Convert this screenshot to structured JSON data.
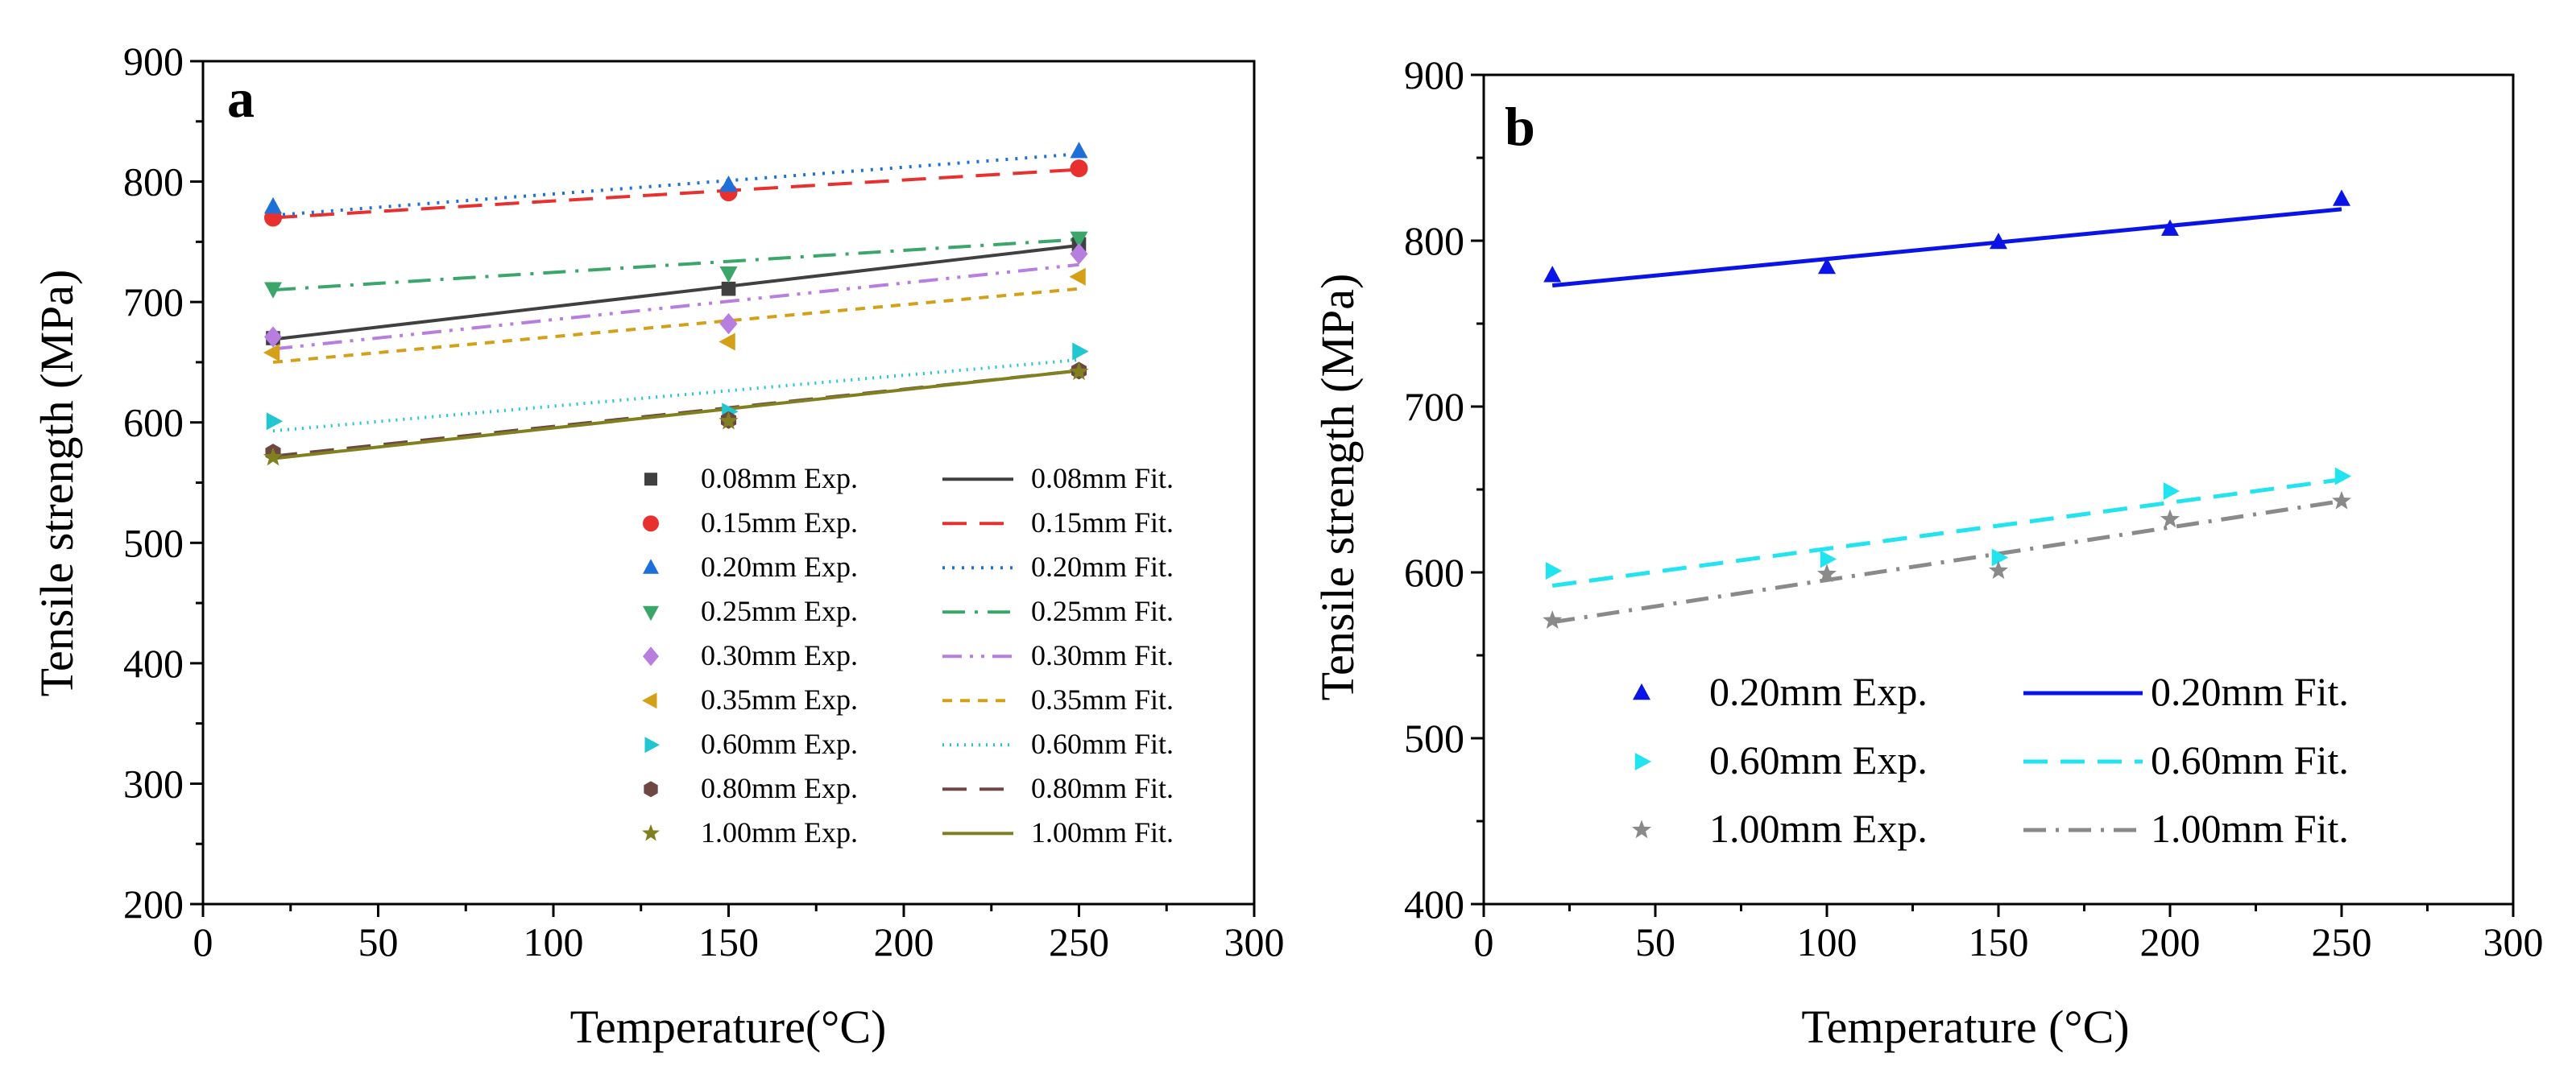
{
  "chart_data": [
    {
      "type": "scatter",
      "panel": "a",
      "xlabel": "Temperature(°C)",
      "ylabel": "Tensile strength (MPa)",
      "xlim": [
        0,
        300
      ],
      "ylim": [
        200,
        900
      ],
      "xticks": [
        0,
        50,
        100,
        150,
        200,
        250,
        300
      ],
      "yticks": [
        200,
        300,
        400,
        500,
        600,
        700,
        800,
        900
      ],
      "legend_position": "bottom-right",
      "series": [
        {
          "name": "0.08mm",
          "exp_label": "0.08mm Exp.",
          "fit_label": "0.08mm Fit.",
          "color": "#404040",
          "marker": "square",
          "dash": "solid",
          "x": [
            20,
            150,
            250
          ],
          "y": [
            670,
            711,
            748
          ],
          "fit": [
            669,
            747
          ]
        },
        {
          "name": "0.15mm",
          "exp_label": "0.15mm Exp.",
          "fit_label": "0.15mm Fit.",
          "color": "#e8312f",
          "marker": "circle",
          "dash": "dash",
          "x": [
            20,
            150,
            250
          ],
          "y": [
            770,
            791,
            811
          ],
          "fit": [
            770,
            810
          ]
        },
        {
          "name": "0.20mm",
          "exp_label": "0.20mm Exp.",
          "fit_label": "0.20mm Fit.",
          "color": "#1f6fd8",
          "marker": "triangle-up",
          "dash": "dot",
          "x": [
            20,
            150,
            250
          ],
          "y": [
            779,
            797,
            825
          ],
          "fit": [
            772,
            823
          ]
        },
        {
          "name": "0.25mm",
          "exp_label": "0.25mm Exp.",
          "fit_label": "0.25mm Fit.",
          "color": "#3aa66a",
          "marker": "triangle-down",
          "dash": "dashdot",
          "x": [
            20,
            150,
            250
          ],
          "y": [
            711,
            724,
            753
          ],
          "fit": [
            710,
            752
          ]
        },
        {
          "name": "0.30mm",
          "exp_label": "0.30mm Exp.",
          "fit_label": "0.30mm Fit.",
          "color": "#b77ee0",
          "marker": "diamond",
          "dash": "dashdotdot",
          "x": [
            20,
            150,
            250
          ],
          "y": [
            671,
            682,
            740
          ],
          "fit": [
            661,
            731
          ]
        },
        {
          "name": "0.35mm",
          "exp_label": "0.35mm Exp.",
          "fit_label": "0.35mm Fit.",
          "color": "#d4a017",
          "marker": "triangle-left",
          "dash": "shortdash",
          "x": [
            20,
            150,
            250
          ],
          "y": [
            658,
            667,
            721
          ],
          "fit": [
            650,
            711
          ]
        },
        {
          "name": "0.60mm",
          "exp_label": "0.60mm Exp.",
          "fit_label": "0.60mm Fit.",
          "color": "#20c6d0",
          "marker": "triangle-right",
          "dash": "shortdot",
          "x": [
            20,
            150,
            250
          ],
          "y": [
            601,
            609,
            659
          ],
          "fit": [
            593,
            652
          ]
        },
        {
          "name": "0.80mm",
          "exp_label": "0.80mm Exp.",
          "fit_label": "0.80mm Fit.",
          "color": "#6e4642",
          "marker": "hexagon",
          "dash": "dash",
          "x": [
            20,
            150,
            250
          ],
          "y": [
            575,
            602,
            643
          ],
          "fit": [
            572,
            643
          ]
        },
        {
          "name": "1.00mm",
          "exp_label": "1.00mm Exp.",
          "fit_label": "1.00mm Fit.",
          "color": "#808020",
          "marker": "star",
          "dash": "solid",
          "x": [
            20,
            150,
            250
          ],
          "y": [
            571,
            601,
            642
          ],
          "fit": [
            570,
            643
          ]
        }
      ]
    },
    {
      "type": "scatter",
      "panel": "b",
      "xlabel": "Temperature (°C)",
      "ylabel": "Tensile strength (MPa)",
      "xlim": [
        0,
        300
      ],
      "ylim": [
        400,
        900
      ],
      "xticks": [
        0,
        50,
        100,
        150,
        200,
        250,
        300
      ],
      "yticks": [
        400,
        500,
        600,
        700,
        800,
        900
      ],
      "legend_position": "bottom-left",
      "series": [
        {
          "name": "0.20mm",
          "exp_label": "0.20mm Exp.",
          "fit_label": "0.20mm Fit.",
          "color": "#0a14e6",
          "marker": "triangle-up",
          "dash": "solid",
          "x": [
            20,
            100,
            150,
            200,
            250
          ],
          "y": [
            779,
            784,
            799,
            807,
            825
          ],
          "fit": [
            773,
            819
          ]
        },
        {
          "name": "0.60mm",
          "exp_label": "0.60mm Exp.",
          "fit_label": "0.60mm Fit.",
          "color": "#22e3f0",
          "marker": "triangle-right",
          "dash": "dash",
          "x": [
            20,
            100,
            150,
            200,
            250
          ],
          "y": [
            601,
            608,
            609,
            649,
            658
          ],
          "fit": [
            592,
            656
          ]
        },
        {
          "name": "1.00mm",
          "exp_label": "1.00mm Exp.",
          "fit_label": "1.00mm Fit.",
          "color": "#8a8a8a",
          "marker": "star",
          "dash": "dashdot",
          "x": [
            20,
            100,
            150,
            200,
            250
          ],
          "y": [
            571,
            599,
            601,
            632,
            643
          ],
          "fit": [
            570,
            643
          ]
        }
      ]
    }
  ]
}
